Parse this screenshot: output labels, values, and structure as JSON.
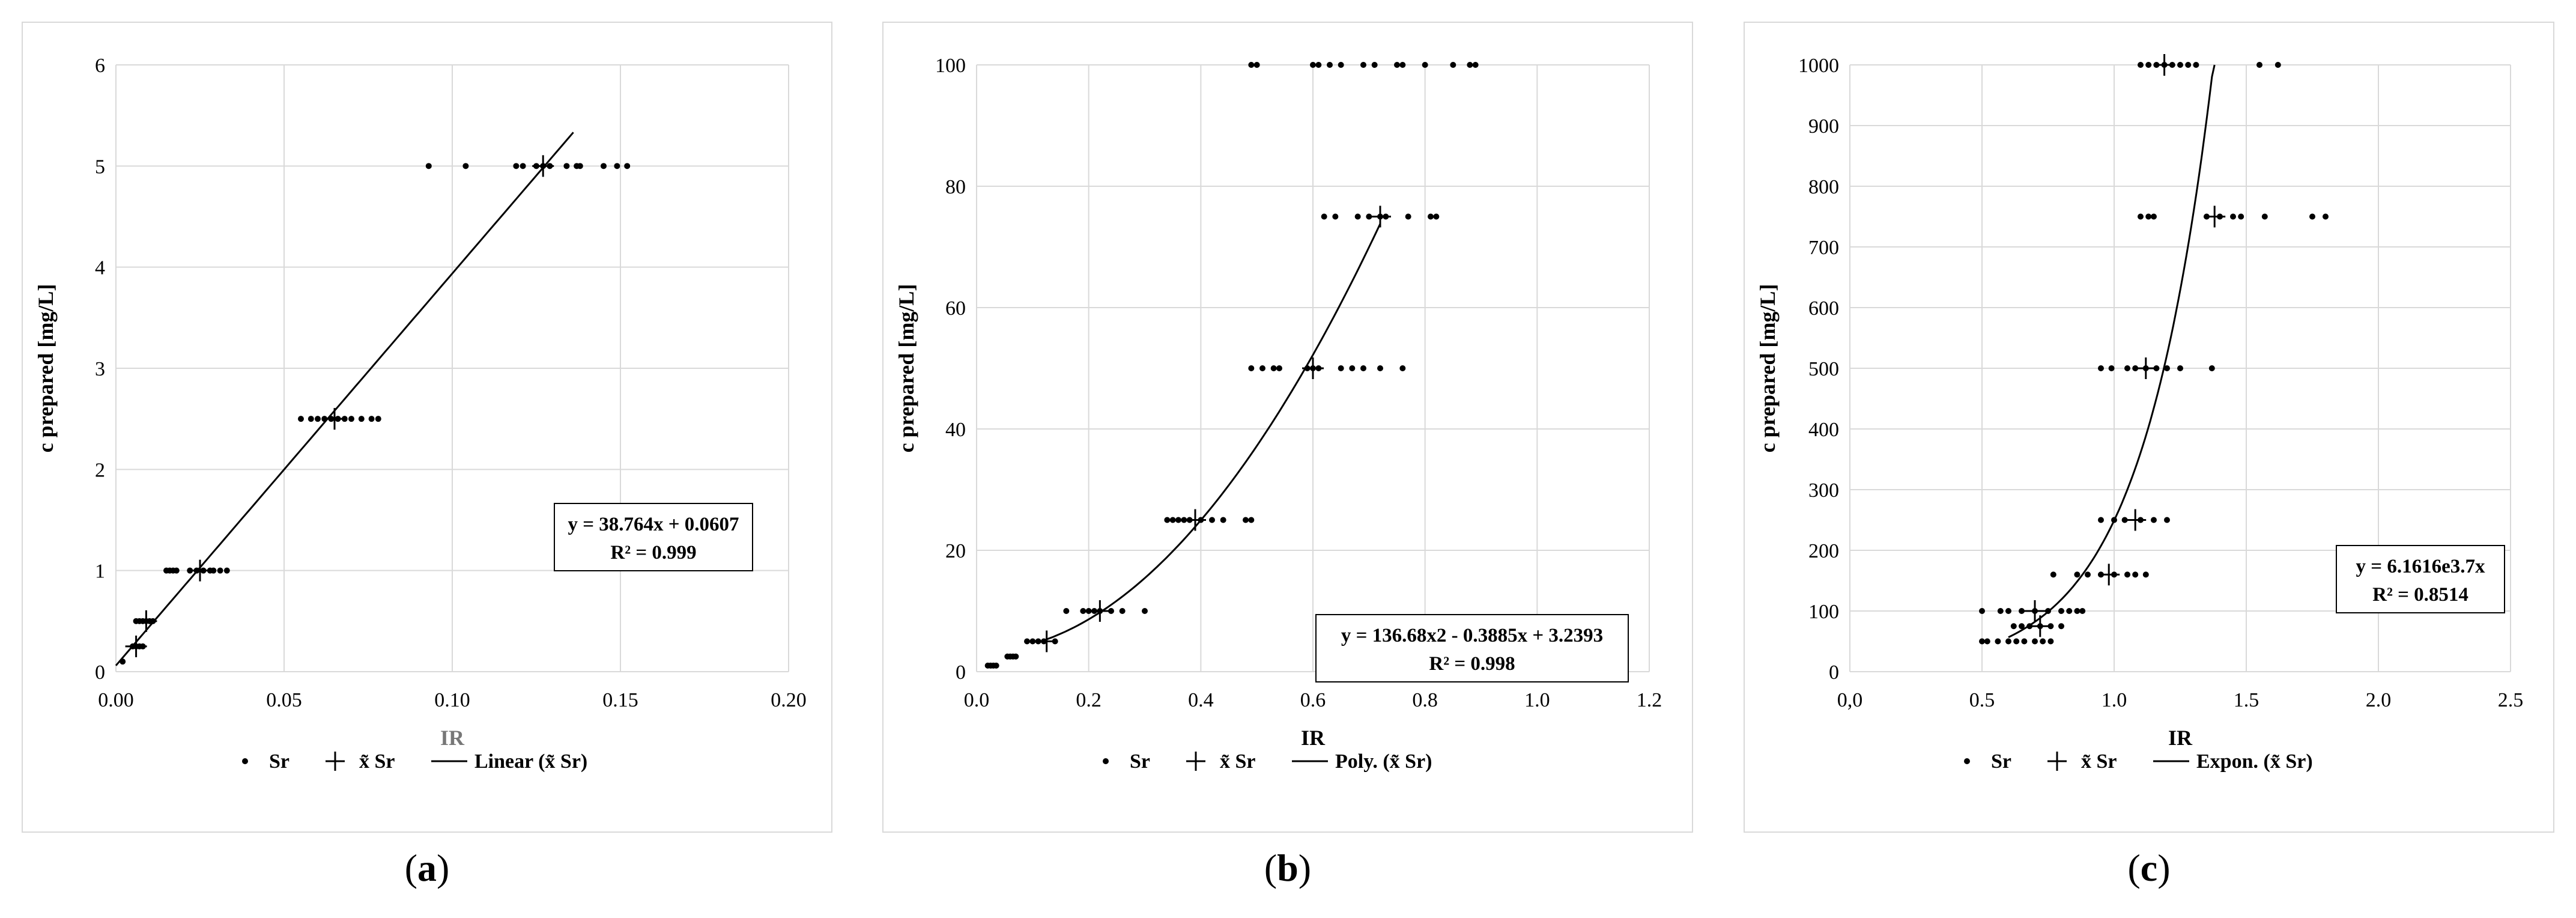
{
  "chart_data": [
    {
      "type": "scatter",
      "panel_label": "a",
      "xlabel": "IR",
      "ylabel": "c prepared [mg/L]",
      "xlim": [
        0,
        0.2
      ],
      "ylim": [
        0,
        6
      ],
      "xticks": [
        0,
        0.05,
        0.1,
        0.15,
        0.2
      ],
      "xtick_labels": [
        "0.00",
        "0.05",
        "0.10",
        "0.15",
        "0.20"
      ],
      "yticks": [
        0,
        1,
        2,
        3,
        4,
        5,
        6
      ],
      "ytick_labels": [
        "0",
        "1",
        "2",
        "3",
        "4",
        "5",
        "6"
      ],
      "grid": true,
      "legend": [
        "Sr",
        "x̃ Sr",
        "Linear (x̃ Sr)"
      ],
      "equation": "y = 38.764x + 0.0607",
      "r2": "R² = 0.999",
      "fit": {
        "kind": "linear",
        "a": 38.764,
        "b": 0.0607,
        "x_range": [
          0.0,
          0.136
        ]
      },
      "series": [
        {
          "name": "Sr",
          "x": [
            0.002,
            0.005,
            0.006,
            0.007,
            0.008,
            0.006,
            0.007,
            0.008,
            0.009,
            0.01,
            0.011,
            0.015,
            0.016,
            0.017,
            0.018,
            0.022,
            0.024,
            0.026,
            0.028,
            0.029,
            0.031,
            0.033,
            0.055,
            0.058,
            0.06,
            0.062,
            0.064,
            0.066,
            0.068,
            0.07,
            0.073,
            0.076,
            0.078,
            0.093,
            0.104,
            0.119,
            0.121,
            0.125,
            0.127,
            0.129,
            0.134,
            0.137,
            0.138,
            0.145,
            0.149,
            0.152
          ],
          "y": [
            0.1,
            0.25,
            0.25,
            0.25,
            0.25,
            0.5,
            0.5,
            0.5,
            0.5,
            0.5,
            0.5,
            1,
            1,
            1,
            1,
            1,
            1,
            1,
            1,
            1,
            1,
            1,
            2.5,
            2.5,
            2.5,
            2.5,
            2.5,
            2.5,
            2.5,
            2.5,
            2.5,
            2.5,
            2.5,
            5,
            5,
            5,
            5,
            5,
            5,
            5,
            5,
            5,
            5,
            5,
            5,
            5
          ]
        },
        {
          "name": "median Sr",
          "x": [
            0.006,
            0.009,
            0.025,
            0.065,
            0.127
          ],
          "y": [
            0.25,
            0.5,
            1,
            2.5,
            5
          ]
        }
      ]
    },
    {
      "type": "scatter",
      "panel_label": "b",
      "xlabel": "IR",
      "ylabel": "c prepared [mg/L]",
      "xlim": [
        0,
        1.2
      ],
      "ylim": [
        0,
        100
      ],
      "xticks": [
        0,
        0.2,
        0.4,
        0.6,
        0.8,
        1.0,
        1.2
      ],
      "xtick_labels": [
        "0.0",
        "0.2",
        "0.4",
        "0.6",
        "0.8",
        "1.0",
        "1.2"
      ],
      "yticks": [
        0,
        20,
        40,
        60,
        80,
        100
      ],
      "ytick_labels": [
        "0",
        "20",
        "40",
        "60",
        "80",
        "100"
      ],
      "grid": true,
      "legend": [
        "Sr",
        "x̃ Sr",
        "Poly. (x̃ Sr)"
      ],
      "equation": "y = 136.68x2 - 0.3885x + 3.2393",
      "r2": "R² = 0.998",
      "fit": {
        "kind": "poly2",
        "a": 136.68,
        "b": -0.3885,
        "c": 3.2393,
        "x_range": [
          0.12,
          0.72
        ]
      },
      "series": [
        {
          "name": "Sr",
          "x": [
            0.02,
            0.025,
            0.03,
            0.035,
            0.055,
            0.06,
            0.065,
            0.07,
            0.09,
            0.1,
            0.11,
            0.12,
            0.14,
            0.16,
            0.19,
            0.2,
            0.21,
            0.22,
            0.24,
            0.26,
            0.3,
            0.34,
            0.35,
            0.36,
            0.37,
            0.38,
            0.4,
            0.42,
            0.44,
            0.48,
            0.49,
            0.49,
            0.51,
            0.53,
            0.54,
            0.59,
            0.6,
            0.61,
            0.65,
            0.67,
            0.69,
            0.72,
            0.76,
            0.62,
            0.64,
            0.68,
            0.7,
            0.72,
            0.73,
            0.77,
            0.81,
            0.82,
            0.49,
            0.5,
            0.6,
            0.61,
            0.63,
            0.65,
            0.69,
            0.71,
            0.75,
            0.76,
            0.8,
            0.85,
            0.88,
            0.89
          ],
          "y": [
            1,
            1,
            1,
            1,
            2.5,
            2.5,
            2.5,
            2.5,
            5,
            5,
            5,
            5,
            5,
            10,
            10,
            10,
            10,
            10,
            10,
            10,
            10,
            25,
            25,
            25,
            25,
            25,
            25,
            25,
            25,
            25,
            25,
            50,
            50,
            50,
            50,
            50,
            50,
            50,
            50,
            50,
            50,
            50,
            50,
            75,
            75,
            75,
            75,
            75,
            75,
            75,
            75,
            75,
            100,
            100,
            100,
            100,
            100,
            100,
            100,
            100,
            100,
            100,
            100,
            100,
            100,
            100
          ]
        },
        {
          "name": "median Sr",
          "x": [
            0.125,
            0.22,
            0.39,
            0.6,
            0.72
          ],
          "y": [
            5,
            10,
            25,
            50,
            75
          ]
        }
      ]
    },
    {
      "type": "scatter",
      "panel_label": "c",
      "xlabel": "IR",
      "ylabel": "c prepared [mg/L]",
      "xlim": [
        0,
        2.5
      ],
      "ylim": [
        0,
        1000
      ],
      "xticks": [
        0,
        0.5,
        1.0,
        1.5,
        2.0,
        2.5
      ],
      "xtick_labels": [
        "0,0",
        "0.5",
        "1.0",
        "1.5",
        "2.0",
        "2.5"
      ],
      "yticks": [
        0,
        100,
        200,
        300,
        400,
        500,
        600,
        700,
        800,
        900,
        1000
      ],
      "ytick_labels": [
        "0",
        "100",
        "200",
        "300",
        "400",
        "500",
        "600",
        "700",
        "800",
        "900",
        "1000"
      ],
      "grid": true,
      "legend": [
        "Sr",
        "x̃ Sr",
        "Expon. (x̃ Sr)"
      ],
      "equation": "y = 6.1616e3.7x",
      "r2": "R² = 0.8514",
      "fit": {
        "kind": "exp",
        "a": 6.1616,
        "k": 3.7,
        "x_range": [
          0.6,
          1.38
        ]
      },
      "series": [
        {
          "name": "Sr",
          "x": [
            0.5,
            0.52,
            0.56,
            0.6,
            0.63,
            0.66,
            0.7,
            0.73,
            0.76,
            0.62,
            0.65,
            0.68,
            0.72,
            0.76,
            0.8,
            0.5,
            0.57,
            0.6,
            0.65,
            0.7,
            0.75,
            0.8,
            0.83,
            0.86,
            0.88,
            0.77,
            0.86,
            0.9,
            0.95,
            1.0,
            1.05,
            1.08,
            1.12,
            0.95,
            1.0,
            1.04,
            1.1,
            1.15,
            1.2,
            0.95,
            0.99,
            1.05,
            1.08,
            1.12,
            1.16,
            1.2,
            1.25,
            1.37,
            1.1,
            1.13,
            1.15,
            1.35,
            1.4,
            1.45,
            1.48,
            1.57,
            1.75,
            1.8,
            1.1,
            1.13,
            1.16,
            1.19,
            1.22,
            1.25,
            1.28,
            1.31,
            1.55,
            1.62
          ],
          "y": [
            50,
            50,
            50,
            50,
            50,
            50,
            50,
            50,
            50,
            75,
            75,
            75,
            75,
            75,
            75,
            100,
            100,
            100,
            100,
            100,
            100,
            100,
            100,
            100,
            100,
            160,
            160,
            160,
            160,
            160,
            160,
            160,
            160,
            250,
            250,
            250,
            250,
            250,
            250,
            500,
            500,
            500,
            500,
            500,
            500,
            500,
            500,
            500,
            750,
            750,
            750,
            750,
            750,
            750,
            750,
            750,
            750,
            750,
            1000,
            1000,
            1000,
            1000,
            1000,
            1000,
            1000,
            1000,
            1000,
            1000
          ]
        },
        {
          "name": "median Sr",
          "x": [
            0.72,
            0.7,
            0.98,
            1.08,
            1.12,
            1.38,
            1.19
          ],
          "y": [
            75,
            100,
            160,
            250,
            500,
            750,
            1000
          ]
        }
      ]
    }
  ]
}
